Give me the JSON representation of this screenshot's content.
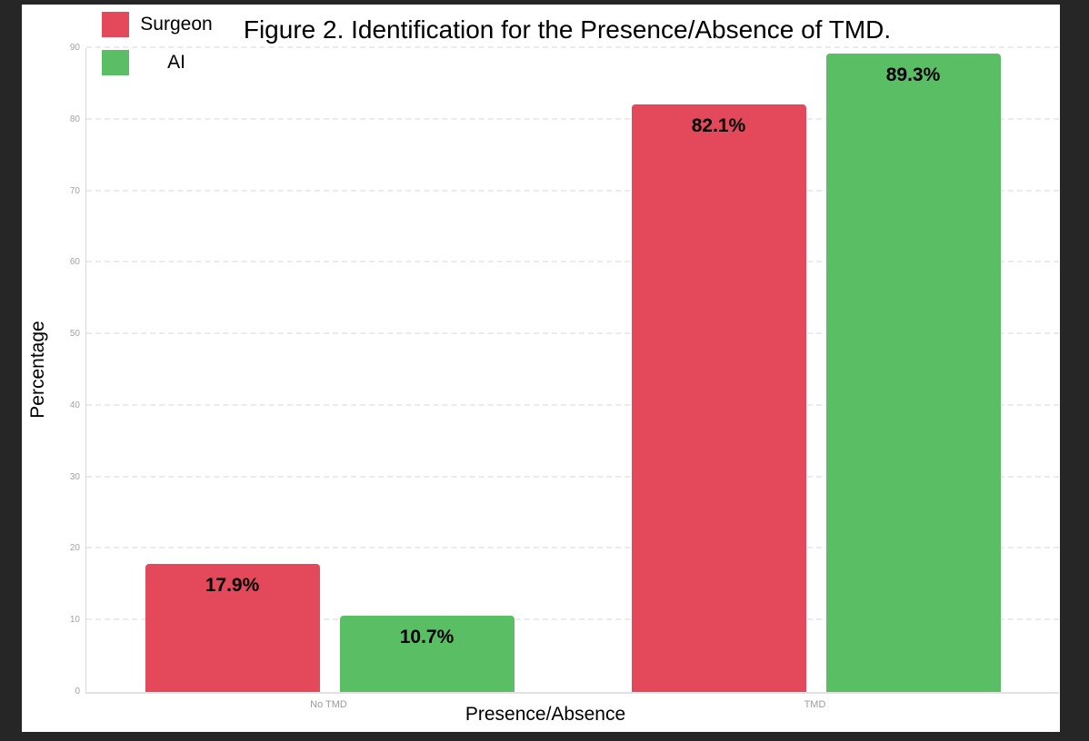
{
  "chart_data": {
    "type": "bar",
    "title": "Figure 2. Identification for the Presence/Absence of TMD.",
    "categories": [
      "No TMD",
      "TMD"
    ],
    "series": [
      {
        "name": "Surgeon",
        "color": "#e3495a",
        "values": [
          17.9,
          82.1
        ],
        "display_labels": [
          "17.9%",
          "82.1%"
        ]
      },
      {
        "name": "AI",
        "color": "#5abe64",
        "values": [
          10.7,
          89.3
        ],
        "display_labels": [
          "10.7%",
          "89.3%"
        ]
      }
    ],
    "xlabel": "Presence/Absence",
    "ylabel": "Percentage",
    "ylim": [
      0,
      90
    ],
    "yticks": [
      0,
      10,
      20,
      30,
      40,
      50,
      60,
      70,
      80,
      90
    ],
    "grid": "horizontal-dashed",
    "legend_position": "top-left"
  },
  "colors": {
    "frame_background": "#262626",
    "canvas_background": "#ffffff",
    "gridline": "#ebebeb",
    "axis_line": "#d9d9d9",
    "tick_label": "#a3a3a3",
    "text": "#000000"
  }
}
